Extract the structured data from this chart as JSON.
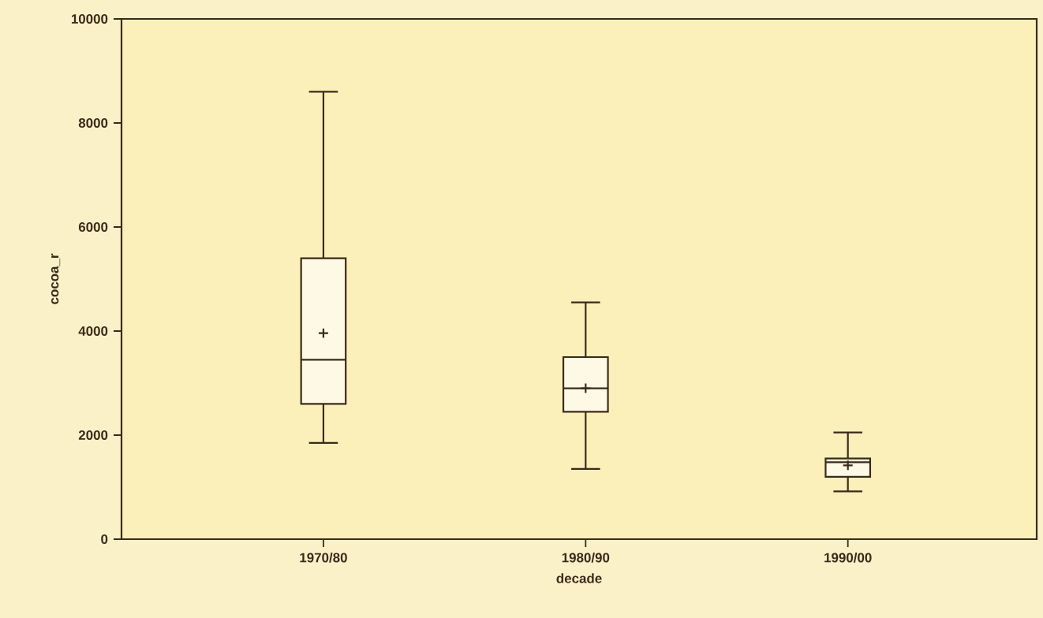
{
  "chart_data": {
    "type": "box",
    "xlabel": "decade",
    "ylabel": "cocoa_r",
    "categories": [
      "1970/80",
      "1980/90",
      "1990/00"
    ],
    "boxes": [
      {
        "low": 1850,
        "q1": 2600,
        "median": 3450,
        "q3": 5400,
        "high": 8600,
        "mean": 3960
      },
      {
        "low": 1350,
        "q1": 2450,
        "median": 2900,
        "q3": 3500,
        "high": 4550,
        "mean": 2900
      },
      {
        "low": 920,
        "q1": 1200,
        "median": 1480,
        "q3": 1550,
        "high": 2050,
        "mean": 1420
      }
    ],
    "color": "#3a2a1a",
    "ylim": [
      0,
      10000
    ],
    "yticks": [
      0,
      2000,
      4000,
      6000,
      8000,
      10000
    ]
  }
}
